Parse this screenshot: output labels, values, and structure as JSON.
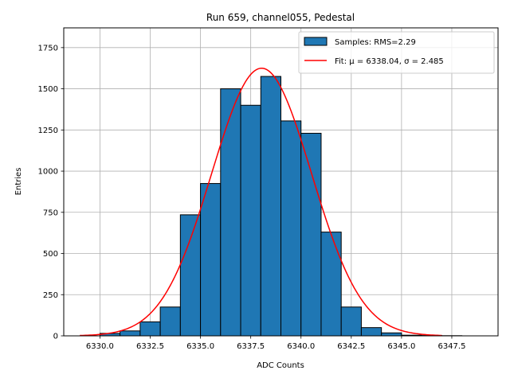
{
  "chart_data": {
    "type": "bar",
    "title": "Run 659, channel055, Pedestal",
    "xlabel": "ADC Counts",
    "ylabel": "Entries",
    "xlim": [
      6328.2,
      6349.8
    ],
    "ylim": [
      0,
      1870
    ],
    "grid": true,
    "legend_position": "top-right",
    "xticks": [
      6330.0,
      6332.5,
      6335.0,
      6337.5,
      6340.0,
      6342.5,
      6345.0,
      6347.5
    ],
    "xtick_labels": [
      "6330.0",
      "6332.5",
      "6335.0",
      "6337.5",
      "6340.0",
      "6342.5",
      "6345.0",
      "6347.5"
    ],
    "yticks": [
      0,
      250,
      500,
      750,
      1000,
      1250,
      1500,
      1750
    ],
    "ytick_labels": [
      "0",
      "250",
      "500",
      "750",
      "1000",
      "1250",
      "1500",
      "1750"
    ],
    "bin_width": 1,
    "bin_lefts": [
      6330,
      6331,
      6332,
      6333,
      6334,
      6335,
      6336,
      6337,
      6338,
      6339,
      6340,
      6341,
      6342,
      6343,
      6344,
      6345,
      6346,
      6347,
      6348
    ],
    "values": [
      15,
      30,
      85,
      175,
      735,
      925,
      1500,
      1400,
      1575,
      1305,
      1230,
      630,
      175,
      50,
      18,
      4,
      2,
      1,
      0
    ],
    "bar_color": "#1f77b4",
    "fit": {
      "mu": 6338.04,
      "sigma": 2.485,
      "amplitude": 1625,
      "x_range": [
        6329,
        6347
      ],
      "color": "#ff0000"
    },
    "legend": [
      {
        "label": "Samples: RMS=2.29",
        "kind": "patch",
        "color": "#1f77b4"
      },
      {
        "label": "Fit: μ = 6338.04, σ = 2.485",
        "kind": "line",
        "color": "#ff0000"
      }
    ]
  }
}
